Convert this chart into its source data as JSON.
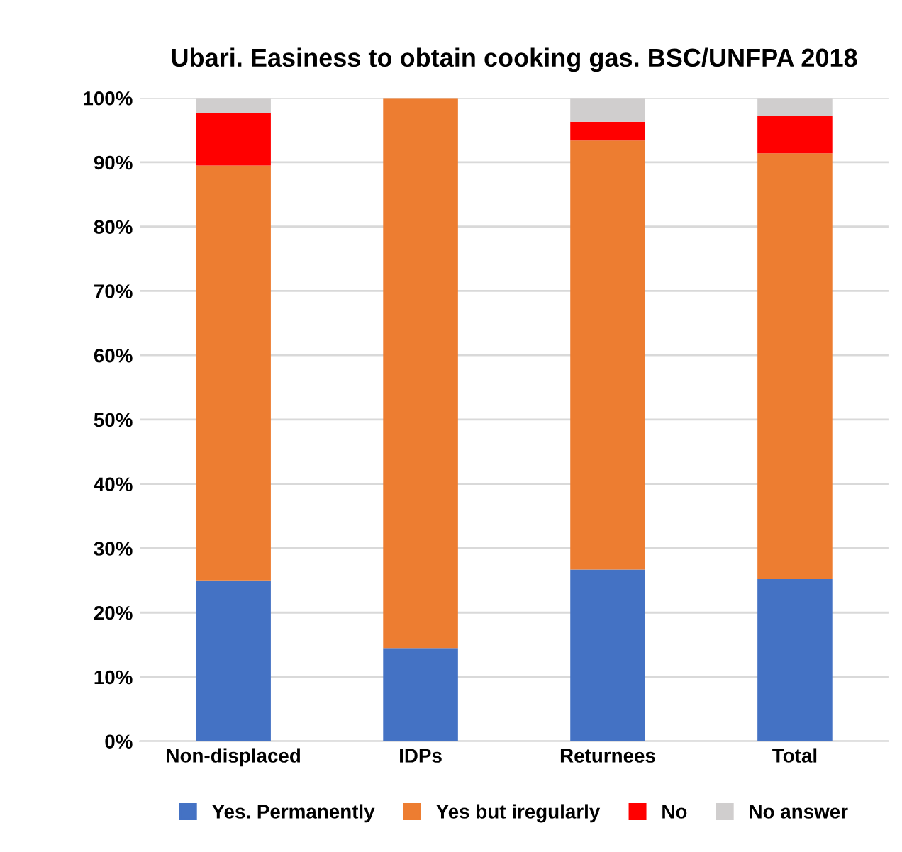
{
  "chart_data": {
    "type": "bar",
    "stacked": true,
    "title": "Ubari. Easiness to obtain cooking gas. BSC/UNFPA 2018",
    "categories": [
      "Non-displaced",
      "IDPs",
      "Returnees",
      "Total"
    ],
    "series": [
      {
        "name": "Yes. Permanently",
        "color": "#4472c4",
        "values": [
          25,
          14.5,
          26.7,
          25.2
        ]
      },
      {
        "name": "Yes but iregularly",
        "color": "#ed7d31",
        "values": [
          64.5,
          85.5,
          66.7,
          66.2
        ]
      },
      {
        "name": "No",
        "color": "#ff0000",
        "values": [
          8.2,
          0,
          2.9,
          5.8
        ]
      },
      {
        "name": "No answer",
        "color": "#d0cece",
        "values": [
          2.3,
          0,
          3.7,
          2.8
        ]
      }
    ],
    "ylim": [
      0,
      100
    ],
    "yticks": [
      {
        "value": 0,
        "label": "0%"
      },
      {
        "value": 10,
        "label": "10%"
      },
      {
        "value": 20,
        "label": "20%"
      },
      {
        "value": 30,
        "label": "30%"
      },
      {
        "value": 40,
        "label": "40%"
      },
      {
        "value": 50,
        "label": "50%"
      },
      {
        "value": 60,
        "label": "60%"
      },
      {
        "value": 70,
        "label": "70%"
      },
      {
        "value": 80,
        "label": "80%"
      },
      {
        "value": 90,
        "label": "90%"
      },
      {
        "value": 100,
        "label": "100%"
      }
    ],
    "grid": "y",
    "legend": "bottom"
  }
}
